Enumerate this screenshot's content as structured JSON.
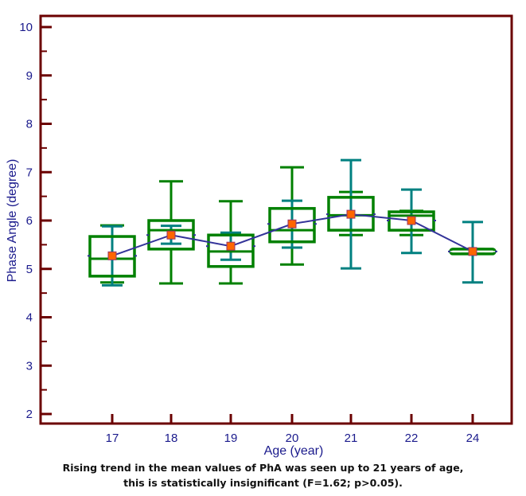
{
  "chart_data": {
    "type": "box",
    "title": "",
    "xlabel": "Age (year)",
    "ylabel": "Phase Angle (degree)",
    "ylim": [
      2,
      10
    ],
    "yticks": [
      2,
      3,
      4,
      5,
      6,
      7,
      8,
      9,
      10
    ],
    "categories": [
      "17",
      "18",
      "19",
      "20",
      "21",
      "22",
      "24"
    ],
    "grid": false,
    "legend": "none",
    "series": [
      {
        "name": "17",
        "q1": 4.85,
        "median": 5.21,
        "q3": 5.67,
        "mean": 5.27,
        "whisker_low": 4.72,
        "whisker_high": 5.9,
        "ci_low": 4.66,
        "ci_high": 5.88
      },
      {
        "name": "18",
        "q1": 5.41,
        "median": 5.8,
        "q3": 6.0,
        "mean": 5.7,
        "whisker_low": 4.7,
        "whisker_high": 6.81,
        "ci_low": 5.52,
        "ci_high": 5.89
      },
      {
        "name": "19",
        "q1": 5.05,
        "median": 5.36,
        "q3": 5.7,
        "mean": 5.47,
        "whisker_low": 4.7,
        "whisker_high": 6.4,
        "ci_low": 5.19,
        "ci_high": 5.75
      },
      {
        "name": "20",
        "q1": 5.56,
        "median": 5.8,
        "q3": 6.25,
        "mean": 5.93,
        "whisker_low": 5.09,
        "whisker_high": 7.1,
        "ci_low": 5.44,
        "ci_high": 6.41
      },
      {
        "name": "21",
        "q1": 5.8,
        "median": 6.11,
        "q3": 6.48,
        "mean": 6.13,
        "whisker_low": 5.7,
        "whisker_high": 6.59,
        "ci_low": 5.01,
        "ci_high": 7.25
      },
      {
        "name": "22",
        "q1": 5.8,
        "median": 6.1,
        "q3": 6.18,
        "mean": 6.0,
        "whisker_low": 5.7,
        "whisker_high": 6.2,
        "ci_low": 5.33,
        "ci_high": 6.64
      },
      {
        "name": "24",
        "q1": 5.31,
        "median": 5.36,
        "q3": 5.41,
        "mean": 5.36,
        "whisker_low": 5.31,
        "whisker_high": 5.41,
        "ci_low": 4.72,
        "ci_high": 5.97
      }
    ],
    "colors": {
      "frame": "#6b0000",
      "box": "#008000",
      "ci": "#008080",
      "mean_line": "#333399",
      "mean_marker_fill": "#ff6600",
      "mean_marker_stroke": "#993366",
      "text": "#1a1a8c"
    }
  },
  "caption": {
    "line1": "Rising trend in the mean values of PhA was seen up to 21 years of age,",
    "line2": "this is statistically insignificant (F=1.62; p>0.05)."
  }
}
